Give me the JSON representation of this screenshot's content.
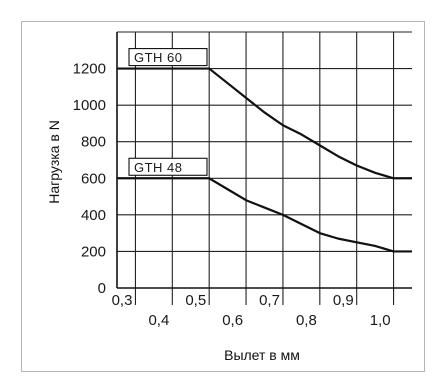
{
  "chart_data": {
    "type": "line",
    "xlabel": "Вылет в мм",
    "ylabel": "Нагрузка в N",
    "xlim": [
      0.25,
      1.05
    ],
    "ylim": [
      0,
      1400
    ],
    "grid": true,
    "x_tick_labels": [
      "0,3",
      "0,4",
      "0,5",
      "0,6",
      "0,7",
      "0,8",
      "0,9",
      "1,0"
    ],
    "x_tick_values": [
      0.3,
      0.4,
      0.5,
      0.6,
      0.7,
      0.8,
      0.9,
      1.0
    ],
    "y_tick_labels": [
      "0",
      "200",
      "400",
      "600",
      "800",
      "1000",
      "1200"
    ],
    "y_tick_values": [
      0,
      200,
      400,
      600,
      800,
      1000,
      1200
    ],
    "series": [
      {
        "name": "GTH 60",
        "x": [
          0.25,
          0.5,
          0.55,
          0.6,
          0.65,
          0.7,
          0.75,
          0.8,
          0.85,
          0.9,
          0.95,
          1.0,
          1.05
        ],
        "y": [
          1200,
          1200,
          1120,
          1040,
          960,
          890,
          840,
          780,
          720,
          670,
          630,
          600,
          600
        ]
      },
      {
        "name": "GTH 48",
        "x": [
          0.25,
          0.5,
          0.55,
          0.6,
          0.65,
          0.7,
          0.75,
          0.8,
          0.85,
          0.9,
          0.95,
          1.0,
          1.05
        ],
        "y": [
          600,
          600,
          540,
          480,
          440,
          400,
          350,
          300,
          270,
          250,
          230,
          200,
          200
        ]
      }
    ]
  }
}
